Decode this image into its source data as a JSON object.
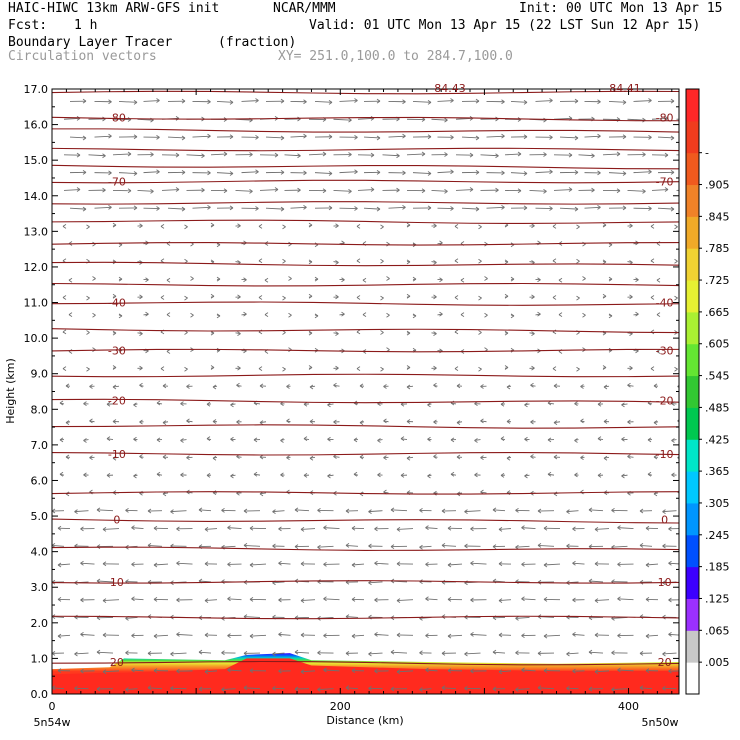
{
  "header": {
    "model": "HAIC-HIWC 13km ARW-GFS init",
    "org": "NCAR/MMM",
    "init": "Init: 00 UTC Mon 13 Apr 15",
    "fcst_label": "Fcst:",
    "fcst_value": "1 h",
    "valid": "Valid: 01 UTC Mon 13 Apr 15 (22 LST Sun 12 Apr 15)",
    "field": "Boundary Layer Tracer",
    "field_units": "(fraction)",
    "vector_field": "Circulation vectors",
    "xy": "XY= 251.0,100.0 to 284.7,100.0"
  },
  "axis": {
    "ylabel": "Height (km)",
    "xlabel": "Distance (km)",
    "left_loc": "5n54w",
    "right_loc": "5n50w",
    "top_left_tag": "84.43",
    "top_right_tag": "84.41"
  },
  "colorbar": {
    "labels": [
      ".005",
      ".065",
      ".125",
      ".185",
      ".245",
      ".305",
      ".365",
      ".425",
      ".485",
      ".545",
      ".605",
      ".665",
      ".725",
      ".785",
      ".845",
      ".905",
      "-"
    ],
    "colors": [
      "#ffffff",
      "#c8c8c8",
      "#9b30ff",
      "#3c00ff",
      "#0050ff",
      "#0096ff",
      "#00c8ff",
      "#00e6c8",
      "#00c850",
      "#32c832",
      "#64e632",
      "#aaf032",
      "#e6f032",
      "#f0d232",
      "#f0aa28",
      "#f08228",
      "#f05a1e",
      "#f03c1e",
      "#ff2828"
    ]
  },
  "chart_data": {
    "type": "heatmap",
    "title": "Boundary Layer Tracer",
    "units": "(fraction)",
    "xlabel": "Distance (km)",
    "ylabel": "Height (km)",
    "xlim": [
      0,
      435
    ],
    "ylim": [
      0,
      17
    ],
    "x_ticks": [
      0,
      200,
      400
    ],
    "y_ticks": [
      0.0,
      1.0,
      2.0,
      3.0,
      4.0,
      5.0,
      6.0,
      7.0,
      8.0,
      9.0,
      10.0,
      11.0,
      12.0,
      13.0,
      14.0,
      15.0,
      16.0,
      17.0
    ],
    "temperature_contours": [
      {
        "label": "-80",
        "height": 16.2,
        "label_left": true,
        "label_right": true
      },
      {
        "label": "-70",
        "height": 14.4,
        "label_left": true,
        "label_right": true
      },
      {
        "label": "-40",
        "height": 11.0,
        "label_left": true,
        "label_right": true
      },
      {
        "label": "-30",
        "height": 9.65,
        "label_left": true,
        "label_right": true
      },
      {
        "label": "-20",
        "height": 8.25,
        "label_left": true,
        "label_right": true
      },
      {
        "label": "-10",
        "height": 6.75,
        "label_left": true,
        "label_right": true
      },
      {
        "label": "0",
        "height": 4.9,
        "label_left": true,
        "label_right": true
      },
      {
        "label": "10",
        "height": 3.15,
        "label_left": true,
        "label_right": true
      },
      {
        "label": "20",
        "height": 0.9,
        "label_left": true,
        "label_right": true
      }
    ],
    "unlabeled_contours": [
      16.9,
      15.85,
      15.3,
      14.85,
      13.8,
      13.3,
      12.65,
      12.1,
      11.5,
      10.25,
      8.95,
      7.55,
      5.65,
      4.1,
      2.15
    ],
    "tracer_layer": [
      {
        "x": 0,
        "top": 0.7,
        "core": 0.55
      },
      {
        "x": 40,
        "top": 0.75,
        "core": 0.6
      },
      {
        "x": 50,
        "top": 1.0,
        "core": 0.6
      },
      {
        "x": 120,
        "top": 0.95,
        "core": 0.7
      },
      {
        "x": 135,
        "top": 1.1,
        "core": 1.0
      },
      {
        "x": 165,
        "top": 1.15,
        "core": 1.0
      },
      {
        "x": 180,
        "top": 0.95,
        "core": 0.8
      },
      {
        "x": 260,
        "top": 0.9,
        "core": 0.7
      },
      {
        "x": 350,
        "top": 0.85,
        "core": 0.65
      },
      {
        "x": 435,
        "top": 0.9,
        "core": 0.65
      }
    ]
  }
}
